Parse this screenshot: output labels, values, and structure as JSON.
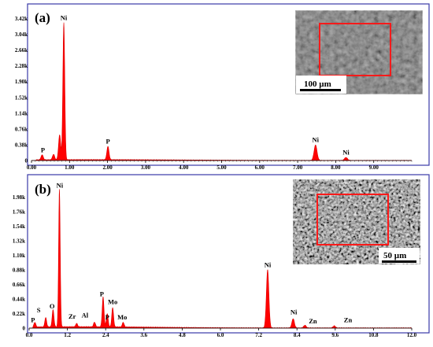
{
  "chart_data": [
    {
      "type": "area",
      "panel_label": "(a)",
      "xlim": [
        0,
        10
      ],
      "x_tick_labels": [
        "0.00",
        "1.00",
        "2.00",
        "3.00",
        "4.00",
        "5.00",
        "6.00",
        "7.00",
        "8.00",
        "9.00"
      ],
      "ylim": [
        0,
        3.6
      ],
      "y_tick_labels": [
        "0",
        "0.38k",
        "0.76k",
        "1.14k",
        "1.52k",
        "1.90k",
        "2.28k",
        "2.66k",
        "3.04k",
        "3.42k"
      ],
      "x_ticks_dense": true,
      "peaks": [
        {
          "x": 0.28,
          "height": 0.12
        },
        {
          "x": 0.58,
          "height": 0.13
        },
        {
          "x": 0.74,
          "height": 0.6
        },
        {
          "x": 0.85,
          "height": 3.3
        },
        {
          "x": 2.01,
          "height": 0.32
        },
        {
          "x": 7.47,
          "height": 0.37
        },
        {
          "x": 8.27,
          "height": 0.07
        }
      ],
      "annotations": [
        {
          "text": "Ni",
          "x": 0.85,
          "y": 3.38
        },
        {
          "text": "P",
          "x": 0.3,
          "y": 0.2
        },
        {
          "text": "P",
          "x": 2.01,
          "y": 0.41
        },
        {
          "text": "Ni",
          "x": 7.47,
          "y": 0.45
        },
        {
          "text": "Ni",
          "x": 8.27,
          "y": 0.14
        }
      ],
      "inset": {
        "scale_bar_label": "100 µm",
        "style": "smooth"
      }
    },
    {
      "type": "area",
      "panel_label": "(b)",
      "xlim": [
        0,
        12
      ],
      "x_tick_labels": [
        "0.0",
        "1.2",
        "2.4",
        "3.6",
        "4.8",
        "6.0",
        "7.2",
        "8.4",
        "9.6",
        "10.8",
        "12.0"
      ],
      "ylim": [
        0,
        2.2
      ],
      "y_tick_labels": [
        "0",
        "0.22k",
        "0.44k",
        "0.66k",
        "0.88k",
        "1.10k",
        "1.32k",
        "1.54k",
        "1.76k",
        "1.98k"
      ],
      "x_ticks_dense": false,
      "peaks": [
        {
          "x": 0.18,
          "height": 0.07
        },
        {
          "x": 0.52,
          "height": 0.14
        },
        {
          "x": 0.75,
          "height": 0.26
        },
        {
          "x": 0.95,
          "height": 2.08
        },
        {
          "x": 1.49,
          "height": 0.05
        },
        {
          "x": 2.05,
          "height": 0.07
        },
        {
          "x": 2.32,
          "height": 0.45
        },
        {
          "x": 2.45,
          "height": 0.2
        },
        {
          "x": 2.62,
          "height": 0.29
        },
        {
          "x": 2.95,
          "height": 0.07
        },
        {
          "x": 7.48,
          "height": 0.88
        },
        {
          "x": 8.28,
          "height": 0.14
        },
        {
          "x": 8.65,
          "height": 0.04
        },
        {
          "x": 9.57,
          "height": 0.03
        }
      ],
      "annotations": [
        {
          "text": "Ni",
          "x": 0.96,
          "y": 2.12
        },
        {
          "text": "S",
          "x": 0.3,
          "y": 0.24
        },
        {
          "text": "O",
          "x": 0.72,
          "y": 0.3
        },
        {
          "text": "P",
          "x": 0.12,
          "y": 0.09
        },
        {
          "text": "Zr",
          "x": 1.35,
          "y": 0.14
        },
        {
          "text": "Al",
          "x": 1.75,
          "y": 0.16
        },
        {
          "text": "P",
          "x": 2.28,
          "y": 0.48
        },
        {
          "text": "Mo",
          "x": 2.62,
          "y": 0.36
        },
        {
          "text": "P",
          "x": 2.45,
          "y": 0.13
        },
        {
          "text": "Mo",
          "x": 2.92,
          "y": 0.13
        },
        {
          "text": "Ni",
          "x": 7.48,
          "y": 0.92
        },
        {
          "text": "Ni",
          "x": 8.3,
          "y": 0.21
        },
        {
          "text": "Zn",
          "x": 8.9,
          "y": 0.07
        },
        {
          "text": "Zn",
          "x": 10.0,
          "y": 0.09
        }
      ],
      "inset": {
        "scale_bar_label": "50 µm",
        "style": "rough"
      }
    }
  ]
}
